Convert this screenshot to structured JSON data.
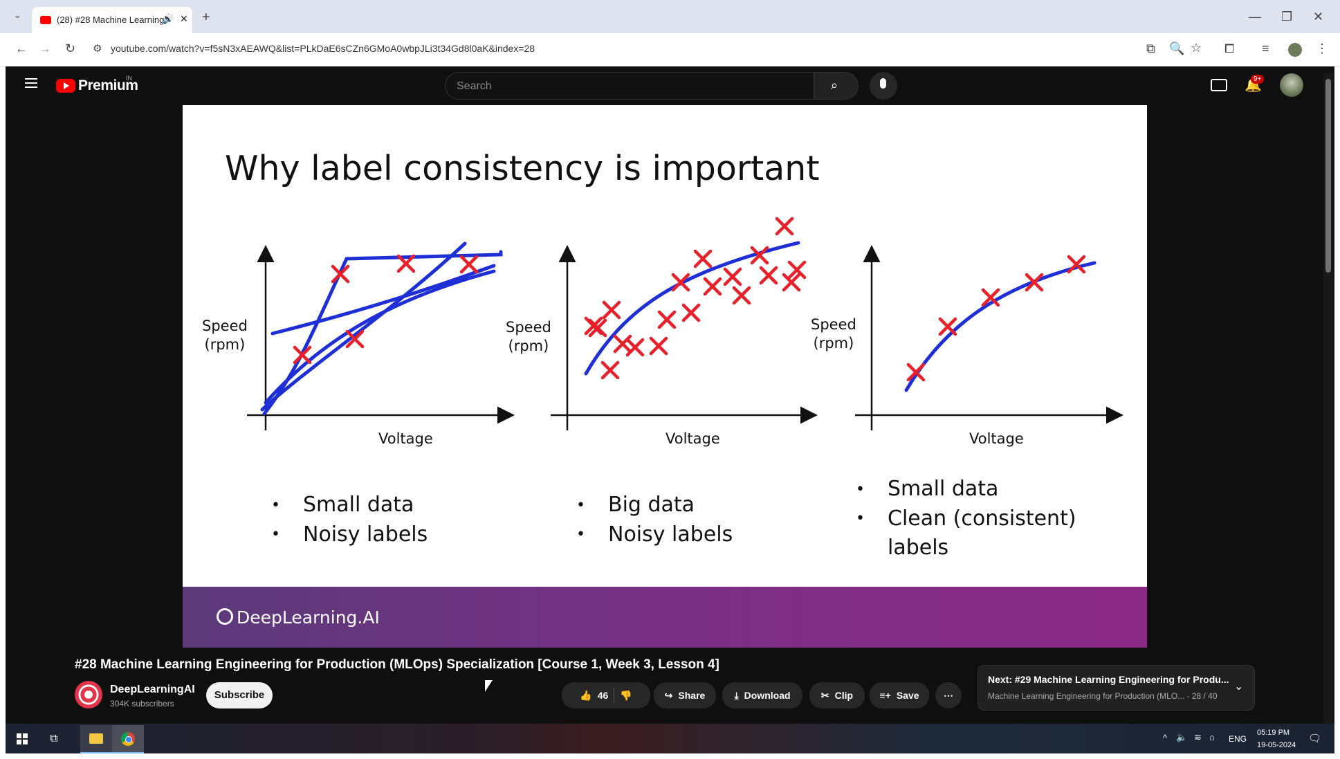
{
  "browser": {
    "tab_title": "(28) #28 Machine Learning",
    "url": "youtube.com/watch?v=f5sN3xAEAWQ&list=PLkDaE6sCZn6GMoA0wbpJLi3t34Gd8l0aK&index=28"
  },
  "youtube": {
    "logo_text": "Premium",
    "region_badge": "IN",
    "search_placeholder": "Search",
    "notification_badge": "9+"
  },
  "slide": {
    "title": "Why label consistency is important",
    "panels": [
      {
        "ylabel_1": "Speed",
        "ylabel_2": "(rpm)",
        "xlabel": "Voltage",
        "bullets": [
          "Small data",
          "Noisy labels"
        ]
      },
      {
        "ylabel_1": "Speed",
        "ylabel_2": "(rpm)",
        "xlabel": "Voltage",
        "bullets": [
          "Big data",
          "Noisy labels"
        ]
      },
      {
        "ylabel_1": "Speed",
        "ylabel_2": "(rpm)",
        "xlabel": "Voltage",
        "bullets": [
          "Small data",
          "Clean (consistent)",
          "labels"
        ]
      }
    ],
    "footer_brand": "DeepLearning.AI",
    "colors": {
      "marker": "#e8202a",
      "curve": "#1f2fd6",
      "footer": "#7e2f86"
    }
  },
  "video": {
    "title": "#28 Machine Learning Engineering for Production (MLOps) Specialization [Course 1, Week 3, Lesson 4]",
    "channel_name": "DeepLearningAI",
    "subscribers": "304K subscribers",
    "subscribe_label": "Subscribe",
    "likes": "46",
    "share_label": "Share",
    "download_label": "Download",
    "clip_label": "Clip",
    "save_label": "Save",
    "next_title": "Next: #29 Machine Learning Engineering for Produ...",
    "next_subtitle": "Machine Learning Engineering for Production (MLO... - 28 / 40"
  },
  "taskbar": {
    "language": "ENG",
    "time": "05:19 PM",
    "date": "19-05-2024"
  }
}
